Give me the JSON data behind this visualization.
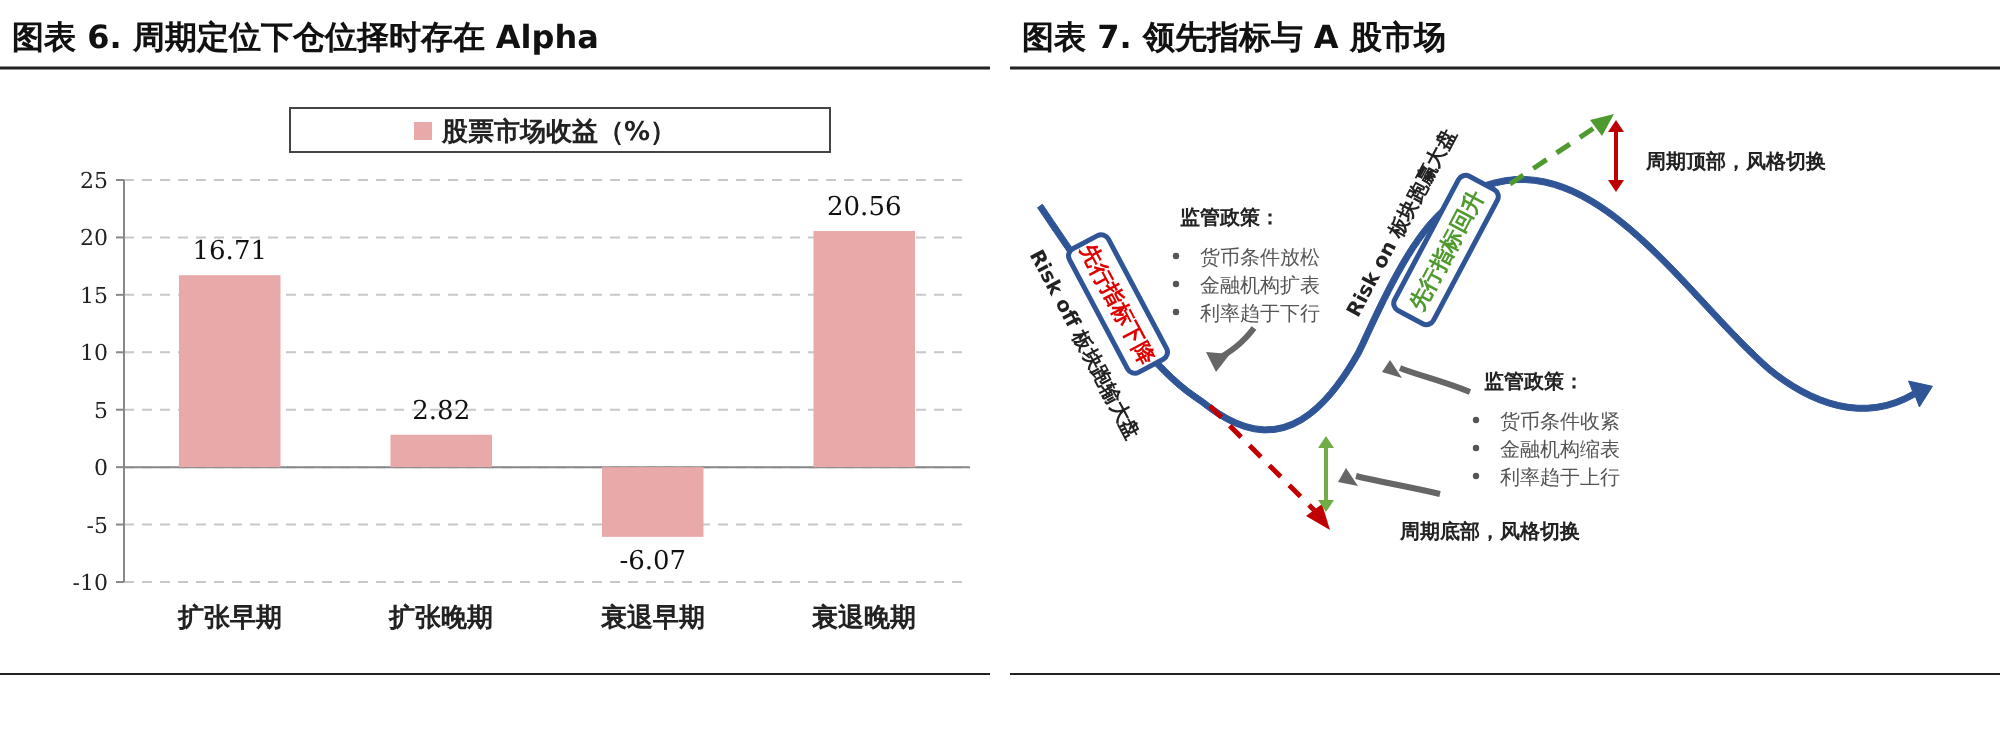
{
  "chart_data": [
    {
      "type": "bar",
      "title": "图表 6. 周期定位下仓位择时存在 Alpha",
      "categories": [
        "扩张早期",
        "扩张晚期",
        "衰退早期",
        "衰退晚期"
      ],
      "series": [
        {
          "name": "股票市场收益（%）",
          "color": "#e8a9a9",
          "values": [
            16.71,
            2.82,
            -6.07,
            20.56
          ]
        }
      ],
      "ylim": [
        -10,
        25
      ],
      "yticks": [
        -10,
        -5,
        0,
        5,
        10,
        15,
        20,
        25
      ],
      "grid": "y",
      "legend": "top",
      "data_labels": true
    },
    {
      "type": "other",
      "title": "图表 7. 领先指标与 A 股市场",
      "annotations": [
        "监管政策：",
        "货币条件放松",
        "金融机构扩表",
        "利率趋于下行",
        "先行指标下降",
        "Risk off 板块跑输大盘",
        "Risk on 板块跑赢大盘",
        "先行指标回升",
        "监管政策：",
        "货币条件收紧",
        "金融机构缩表",
        "利率趋于上行",
        "周期顶部，风格切换",
        "周期底部，风格切换"
      ]
    }
  ]
}
